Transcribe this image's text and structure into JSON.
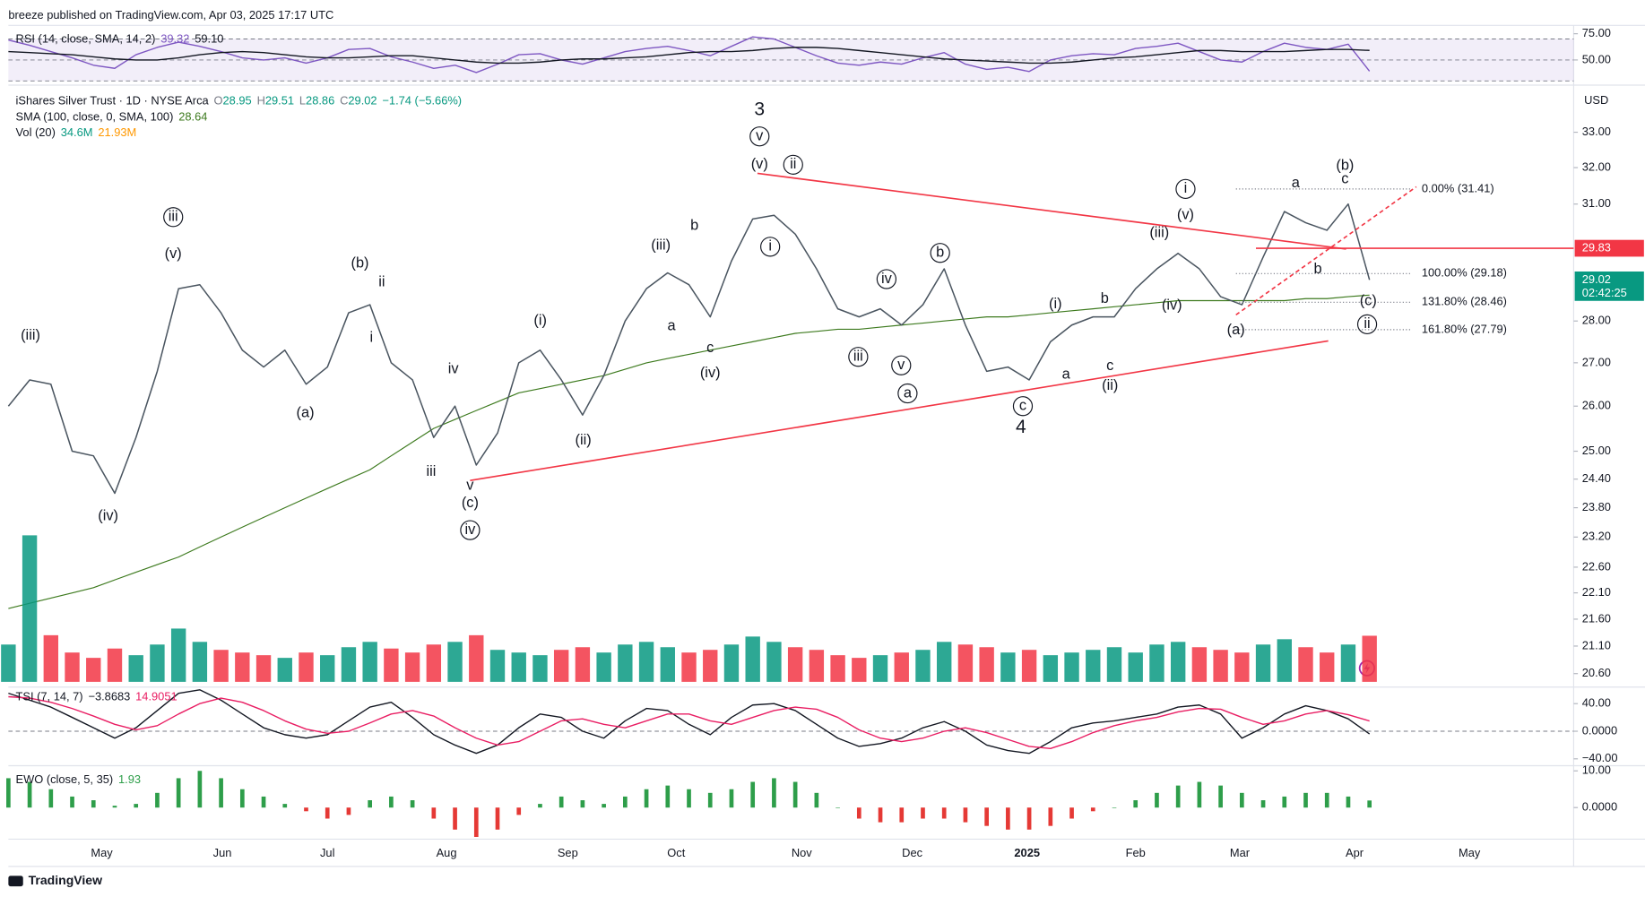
{
  "header": "breeze published on TradingView.com, Apr 03, 2025 17:17 UTC",
  "footer": "TradingView",
  "chart_data": [
    {
      "type": "line",
      "legend": {
        "name": "RSI (14, close, SMA, 14, 2)",
        "values": [
          "39.32",
          "59.10"
        ],
        "colors": [
          "#7e57c2",
          "#131722"
        ]
      },
      "xlim": [
        0,
        73.6
      ],
      "ylim": [
        27,
        83
      ],
      "yticks": [
        {
          "value": 75,
          "label": "75.00"
        },
        {
          "value": 50,
          "label": "50.00"
        }
      ],
      "levels": [
        70,
        50,
        30
      ],
      "band_color": "#7e57c2",
      "series": [
        {
          "color": "#7e57c2",
          "values": [
            69,
            64,
            58,
            52,
            45,
            42,
            55,
            62,
            67,
            63,
            58,
            52,
            50,
            52,
            47,
            52,
            60,
            61,
            53,
            48,
            42,
            45,
            38,
            46,
            55,
            56,
            50,
            46,
            52,
            58,
            61,
            63,
            59,
            54,
            63,
            72,
            70,
            62,
            54,
            47,
            45,
            48,
            46,
            52,
            57,
            46,
            41,
            43,
            39,
            50,
            54,
            56,
            55,
            61,
            63,
            66,
            58,
            50,
            48,
            58,
            66,
            62,
            60,
            65,
            39.32
          ]
        },
        {
          "color": "#131722",
          "values": [
            58,
            57,
            56,
            55,
            53,
            51,
            50,
            50,
            52,
            55,
            57,
            58,
            57,
            55,
            53,
            52,
            52,
            53,
            54,
            54,
            52,
            50,
            48,
            47,
            47,
            48,
            50,
            51,
            51,
            52,
            53,
            55,
            57,
            58,
            58,
            59,
            61,
            62,
            62,
            61,
            59,
            57,
            55,
            53,
            51,
            50,
            49,
            48,
            47,
            47,
            48,
            50,
            52,
            53,
            55,
            57,
            59,
            59,
            58,
            58,
            58,
            59,
            60,
            60,
            59.1
          ]
        }
      ]
    },
    {
      "type": "price",
      "title": "iShares Silver Trust · 1D · NYSE Arca",
      "ohlc": [
        "O",
        "28.95",
        "H",
        "29.51",
        "L",
        "28.86",
        "C",
        "29.02"
      ],
      "change": "−1.74 (−5.66%)",
      "unit": "USD",
      "countdown": "02:42:25",
      "log_scale": true,
      "xlim": [
        0,
        73.6
      ],
      "ylim": [
        20.36,
        34.35
      ],
      "yticks": [
        {
          "value": 20.6,
          "label": "20.60"
        },
        {
          "value": 21.1,
          "label": "21.10"
        },
        {
          "value": 21.6,
          "label": "21.60"
        },
        {
          "value": 22.1,
          "label": "22.10"
        },
        {
          "value": 22.6,
          "label": "22.60"
        },
        {
          "value": 23.2,
          "label": "23.20"
        },
        {
          "value": 23.8,
          "label": "23.80"
        },
        {
          "value": 24.4,
          "label": "24.40"
        },
        {
          "value": 25,
          "label": "25.00"
        },
        {
          "value": 26,
          "label": "26.00"
        },
        {
          "value": 27,
          "label": "27.00"
        },
        {
          "value": 28,
          "label": "28.00"
        },
        {
          "value": 31,
          "label": "31.00"
        },
        {
          "value": 32,
          "label": "32.00"
        },
        {
          "value": 33,
          "label": "33.00"
        }
      ],
      "color": "#4a5560",
      "last_color": "#089981",
      "values": [
        26.0,
        26.6,
        26.5,
        25.0,
        24.9,
        24.1,
        25.3,
        26.8,
        28.8,
        28.9,
        28.2,
        27.3,
        26.9,
        27.3,
        26.5,
        26.9,
        28.2,
        28.4,
        27.0,
        26.6,
        25.3,
        26.0,
        24.7,
        25.4,
        27.0,
        27.3,
        26.6,
        25.8,
        26.7,
        28.0,
        28.8,
        29.2,
        28.9,
        28.1,
        29.5,
        30.6,
        30.7,
        30.2,
        29.3,
        28.3,
        28.1,
        28.3,
        27.9,
        28.4,
        29.3,
        27.9,
        26.8,
        26.9,
        26.6,
        27.5,
        27.9,
        28.1,
        28.1,
        28.8,
        29.3,
        29.7,
        29.3,
        28.6,
        28.4,
        29.6,
        30.8,
        30.5,
        30.3,
        31.0,
        29.02
      ],
      "sma": {
        "color": "#3d7a1e",
        "legend": {
          "name": "SMA (100, close, 0, SMA, 100)",
          "values": [
            "28.64"
          ],
          "colors": [
            "#3d7a1e"
          ]
        },
        "values": [
          21.8,
          21.9,
          22.0,
          22.1,
          22.2,
          22.35,
          22.5,
          22.65,
          22.8,
          23.0,
          23.2,
          23.4,
          23.6,
          23.8,
          24.0,
          24.2,
          24.4,
          24.6,
          24.9,
          25.2,
          25.5,
          25.7,
          25.9,
          26.1,
          26.3,
          26.4,
          26.5,
          26.6,
          26.7,
          26.85,
          27.0,
          27.1,
          27.2,
          27.3,
          27.4,
          27.5,
          27.6,
          27.7,
          27.75,
          27.8,
          27.8,
          27.85,
          27.9,
          27.95,
          28.0,
          28.05,
          28.1,
          28.1,
          28.15,
          28.2,
          28.25,
          28.3,
          28.35,
          28.4,
          28.45,
          28.5,
          28.5,
          28.5,
          28.5,
          28.5,
          28.5,
          28.55,
          28.55,
          28.6,
          28.64
        ]
      },
      "trend_color": "#f23645",
      "trendlines": [
        {
          "from": [
            35.22,
            31.84
          ],
          "to": [
            62.9,
            29.81
          ]
        },
        {
          "from": [
            21.71,
            24.37
          ],
          "to": [
            62.06,
            27.52
          ]
        },
        {
          "from": [
            57.72,
            28.15
          ],
          "to": [
            66.2,
            31.47
          ],
          "dashed": true
        }
      ],
      "hline": {
        "value": 29.83,
        "from": 58.66,
        "color": "#f23645"
      },
      "fib": {
        "from": 57.72,
        "to": 65.96,
        "color": "#787b86",
        "levels": [
          {
            "value": 31.41,
            "label": "0.00% (31.41)"
          },
          {
            "value": 29.18,
            "label": "100.00% (29.18)"
          },
          {
            "value": 28.46,
            "label": "131.80% (28.46)"
          },
          {
            "value": 27.79,
            "label": "161.80% (27.79)"
          }
        ]
      },
      "annotations": [
        {
          "text": "(iii)",
          "x": 1.04,
          "y": 27.64
        },
        {
          "text": "(iv)",
          "x": 4.69,
          "y": 23.62
        },
        {
          "text": "iii",
          "x": 7.75,
          "y": 30.65,
          "circled": true
        },
        {
          "text": "(v)",
          "x": 7.75,
          "y": 29.68
        },
        {
          "text": "(a)",
          "x": 13.96,
          "y": 25.84
        },
        {
          "text": "(b)",
          "x": 16.53,
          "y": 29.44
        },
        {
          "text": "ii",
          "x": 17.56,
          "y": 28.96
        },
        {
          "text": "i",
          "x": 17.07,
          "y": 27.59
        },
        {
          "text": "iv",
          "x": 20.92,
          "y": 26.85
        },
        {
          "text": "iii",
          "x": 19.88,
          "y": 24.55
        },
        {
          "text": "v",
          "x": 21.71,
          "y": 24.26
        },
        {
          "text": "(c)",
          "x": 21.71,
          "y": 23.89
        },
        {
          "text": "iv",
          "x": 21.71,
          "y": 23.34,
          "circled": true
        },
        {
          "text": "(i)",
          "x": 25.01,
          "y": 28.0
        },
        {
          "text": "(ii)",
          "x": 27.03,
          "y": 25.23
        },
        {
          "text": "(iii)",
          "x": 30.68,
          "y": 29.9
        },
        {
          "text": "b",
          "x": 32.26,
          "y": 30.42
        },
        {
          "text": "a",
          "x": 31.18,
          "y": 27.87
        },
        {
          "text": "c",
          "x": 33.0,
          "y": 27.34
        },
        {
          "text": "(iv)",
          "x": 33.0,
          "y": 26.75
        },
        {
          "text": "3",
          "x": 35.32,
          "y": 33.64,
          "major": true
        },
        {
          "text": "v",
          "x": 35.32,
          "y": 32.88,
          "circled": true
        },
        {
          "text": "(v)",
          "x": 35.32,
          "y": 32.08
        },
        {
          "text": "ii",
          "x": 36.9,
          "y": 32.08,
          "circled": true
        },
        {
          "text": "i",
          "x": 35.82,
          "y": 29.87,
          "circled": true
        },
        {
          "text": "iii",
          "x": 39.96,
          "y": 27.14,
          "circled": true
        },
        {
          "text": "iv",
          "x": 41.29,
          "y": 29.04,
          "circled": true
        },
        {
          "text": "v",
          "x": 41.98,
          "y": 26.94,
          "circled": true
        },
        {
          "text": "a",
          "x": 42.28,
          "y": 26.29,
          "circled": true
        },
        {
          "text": "b",
          "x": 43.81,
          "y": 29.71,
          "circled": true
        },
        {
          "text": "c",
          "x": 47.7,
          "y": 26.0,
          "circled": true
        },
        {
          "text": "4",
          "x": 47.61,
          "y": 25.51,
          "major": true
        },
        {
          "text": "(i)",
          "x": 49.23,
          "y": 28.41
        },
        {
          "text": "a",
          "x": 49.73,
          "y": 26.72
        },
        {
          "text": "b",
          "x": 51.55,
          "y": 28.54
        },
        {
          "text": "c",
          "x": 51.8,
          "y": 26.92
        },
        {
          "text": "(ii)",
          "x": 51.8,
          "y": 26.46
        },
        {
          "text": "(iii)",
          "x": 54.12,
          "y": 30.23
        },
        {
          "text": "(iv)",
          "x": 54.71,
          "y": 28.38
        },
        {
          "text": "(v)",
          "x": 55.35,
          "y": 30.7
        },
        {
          "text": "i",
          "x": 55.35,
          "y": 31.41,
          "circled": true
        },
        {
          "text": "(a)",
          "x": 57.72,
          "y": 27.77
        },
        {
          "text": "a",
          "x": 60.53,
          "y": 31.56
        },
        {
          "text": "b",
          "x": 61.57,
          "y": 29.28
        },
        {
          "text": "(b)",
          "x": 62.85,
          "y": 32.05
        },
        {
          "text": "c",
          "x": 62.85,
          "y": 31.67
        },
        {
          "text": "(c)",
          "x": 63.94,
          "y": 28.49
        },
        {
          "text": "ii",
          "x": 63.89,
          "y": 27.92,
          "circled": true
        }
      ]
    },
    {
      "type": "volume",
      "legend": {
        "name": "Vol (20)",
        "values": [
          "34.6M",
          "21.93M"
        ],
        "colors": [
          "#089981",
          "#ff9800"
        ]
      },
      "xlim": [
        0,
        73.6
      ],
      "color_up": "#089981",
      "color_down": "#f23645",
      "values": [
        28,
        110,
        35,
        22,
        18,
        25,
        20,
        28,
        40,
        30,
        24,
        22,
        20,
        18,
        22,
        20,
        26,
        30,
        25,
        22,
        28,
        30,
        35,
        24,
        22,
        20,
        24,
        26,
        22,
        28,
        30,
        26,
        22,
        24,
        28,
        34,
        30,
        26,
        24,
        20,
        18,
        20,
        22,
        24,
        30,
        28,
        26,
        22,
        24,
        20,
        22,
        24,
        26,
        22,
        28,
        30,
        26,
        24,
        22,
        28,
        32,
        26,
        22,
        28,
        34.6
      ]
    },
    {
      "type": "line",
      "legend": {
        "name": "TSI (7, 14, 7)",
        "values": [
          "−3.8683",
          "14.9051"
        ],
        "colors": [
          "#131722",
          "#e91e63"
        ]
      },
      "xlim": [
        0,
        73.6
      ],
      "ylim": [
        -50,
        64
      ],
      "yticks": [
        {
          "value": 40,
          "label": "40.00"
        },
        {
          "value": 0,
          "label": "0.0000"
        },
        {
          "value": -40,
          "label": "−40.00"
        }
      ],
      "levels": [
        0
      ],
      "series": [
        {
          "color": "#131722",
          "values": [
            55,
            45,
            35,
            20,
            5,
            -10,
            5,
            30,
            55,
            60,
            45,
            25,
            5,
            -5,
            -10,
            -5,
            15,
            35,
            42,
            20,
            -5,
            -20,
            -32,
            -20,
            5,
            25,
            20,
            0,
            -10,
            15,
            33,
            30,
            10,
            -5,
            20,
            38,
            40,
            30,
            10,
            -10,
            -22,
            -18,
            -10,
            5,
            14,
            0,
            -20,
            -28,
            -32,
            -15,
            5,
            12,
            15,
            20,
            25,
            35,
            38,
            25,
            -10,
            5,
            25,
            37,
            30,
            18,
            -3.8683
          ]
        },
        {
          "color": "#e91e63",
          "values": [
            50,
            48,
            42,
            33,
            22,
            10,
            2,
            8,
            25,
            40,
            48,
            42,
            30,
            15,
            3,
            -3,
            0,
            12,
            25,
            30,
            22,
            5,
            -10,
            -20,
            -15,
            0,
            15,
            18,
            10,
            5,
            15,
            25,
            25,
            15,
            10,
            20,
            30,
            35,
            32,
            20,
            2,
            -10,
            -15,
            -10,
            0,
            5,
            -2,
            -12,
            -22,
            -25,
            -15,
            -2,
            8,
            15,
            20,
            28,
            33,
            32,
            20,
            10,
            15,
            25,
            30,
            24,
            14.9051
          ]
        }
      ]
    },
    {
      "type": "bar",
      "legend": {
        "name": "EWO (close, 5, 35)",
        "values": [
          "1.93"
        ],
        "colors": [
          "#2e9e4a"
        ]
      },
      "xlim": [
        0,
        73.6
      ],
      "ylim": [
        -8.6,
        11.4
      ],
      "yticks": [
        {
          "value": 10,
          "label": "10.00"
        },
        {
          "value": 0,
          "label": "0.0000"
        }
      ],
      "xticks": [
        {
          "value": 4.39,
          "label": "May"
        },
        {
          "value": 10.06,
          "label": "Jun"
        },
        {
          "value": 15.0,
          "label": "Jul"
        },
        {
          "value": 20.6,
          "label": "Aug"
        },
        {
          "value": 26.3,
          "label": "Sep"
        },
        {
          "value": 31.4,
          "label": "Oct"
        },
        {
          "value": 37.3,
          "label": "Nov"
        },
        {
          "value": 42.5,
          "label": "Dec"
        },
        {
          "value": 47.9,
          "label": "2025"
        },
        {
          "value": 53.0,
          "label": "Feb"
        },
        {
          "value": 57.9,
          "label": "Mar"
        },
        {
          "value": 63.3,
          "label": "Apr"
        },
        {
          "value": 68.7,
          "label": "May"
        }
      ],
      "color_up": "#2e9e4a",
      "color_down": "#e53935",
      "values": [
        8,
        7,
        5,
        3,
        2,
        0.5,
        1,
        4,
        8,
        10,
        8,
        5,
        3,
        1,
        -1,
        -3,
        -2,
        2,
        3,
        2,
        -3,
        -6,
        -8,
        -6,
        -2,
        1,
        3,
        2,
        1,
        3,
        5,
        6,
        5,
        4,
        5,
        7,
        8,
        7,
        4,
        0,
        -3,
        -4,
        -4,
        -3,
        -3,
        -4,
        -5,
        -6,
        -6,
        -5,
        -3,
        -1,
        0,
        2,
        4,
        6,
        7,
        6,
        4,
        2,
        3,
        4,
        4,
        3,
        1.93
      ]
    }
  ]
}
